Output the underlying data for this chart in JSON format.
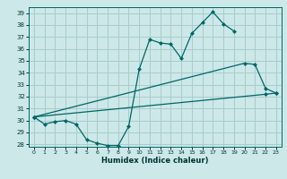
{
  "xlabel": "Humidex (Indice chaleur)",
  "bg_color": "#cce8e8",
  "grid_color": "#aacccc",
  "line_color": "#006666",
  "xlim": [
    -0.5,
    23.5
  ],
  "ylim": [
    27.8,
    39.5
  ],
  "yticks": [
    28,
    29,
    30,
    31,
    32,
    33,
    34,
    35,
    36,
    37,
    38,
    39
  ],
  "xticks": [
    0,
    1,
    2,
    3,
    4,
    5,
    6,
    7,
    8,
    9,
    10,
    11,
    12,
    13,
    14,
    15,
    16,
    17,
    18,
    19,
    20,
    21,
    22,
    23
  ],
  "line1_x": [
    0,
    1,
    2,
    3,
    4,
    5,
    6,
    7,
    8,
    9,
    10,
    11,
    12,
    13,
    14,
    15,
    16,
    17,
    18,
    19
  ],
  "line1_y": [
    30.3,
    29.7,
    29.9,
    30.0,
    29.7,
    28.4,
    28.1,
    27.9,
    27.9,
    29.5,
    34.3,
    36.8,
    36.5,
    36.4,
    35.2,
    37.3,
    38.2,
    39.1,
    38.1,
    37.5
  ],
  "line2_x": [
    0,
    20,
    21,
    22,
    23
  ],
  "line2_y": [
    30.3,
    34.8,
    34.7,
    32.7,
    32.3
  ],
  "line3_x": [
    0,
    22,
    23
  ],
  "line3_y": [
    30.3,
    32.2,
    32.3
  ]
}
